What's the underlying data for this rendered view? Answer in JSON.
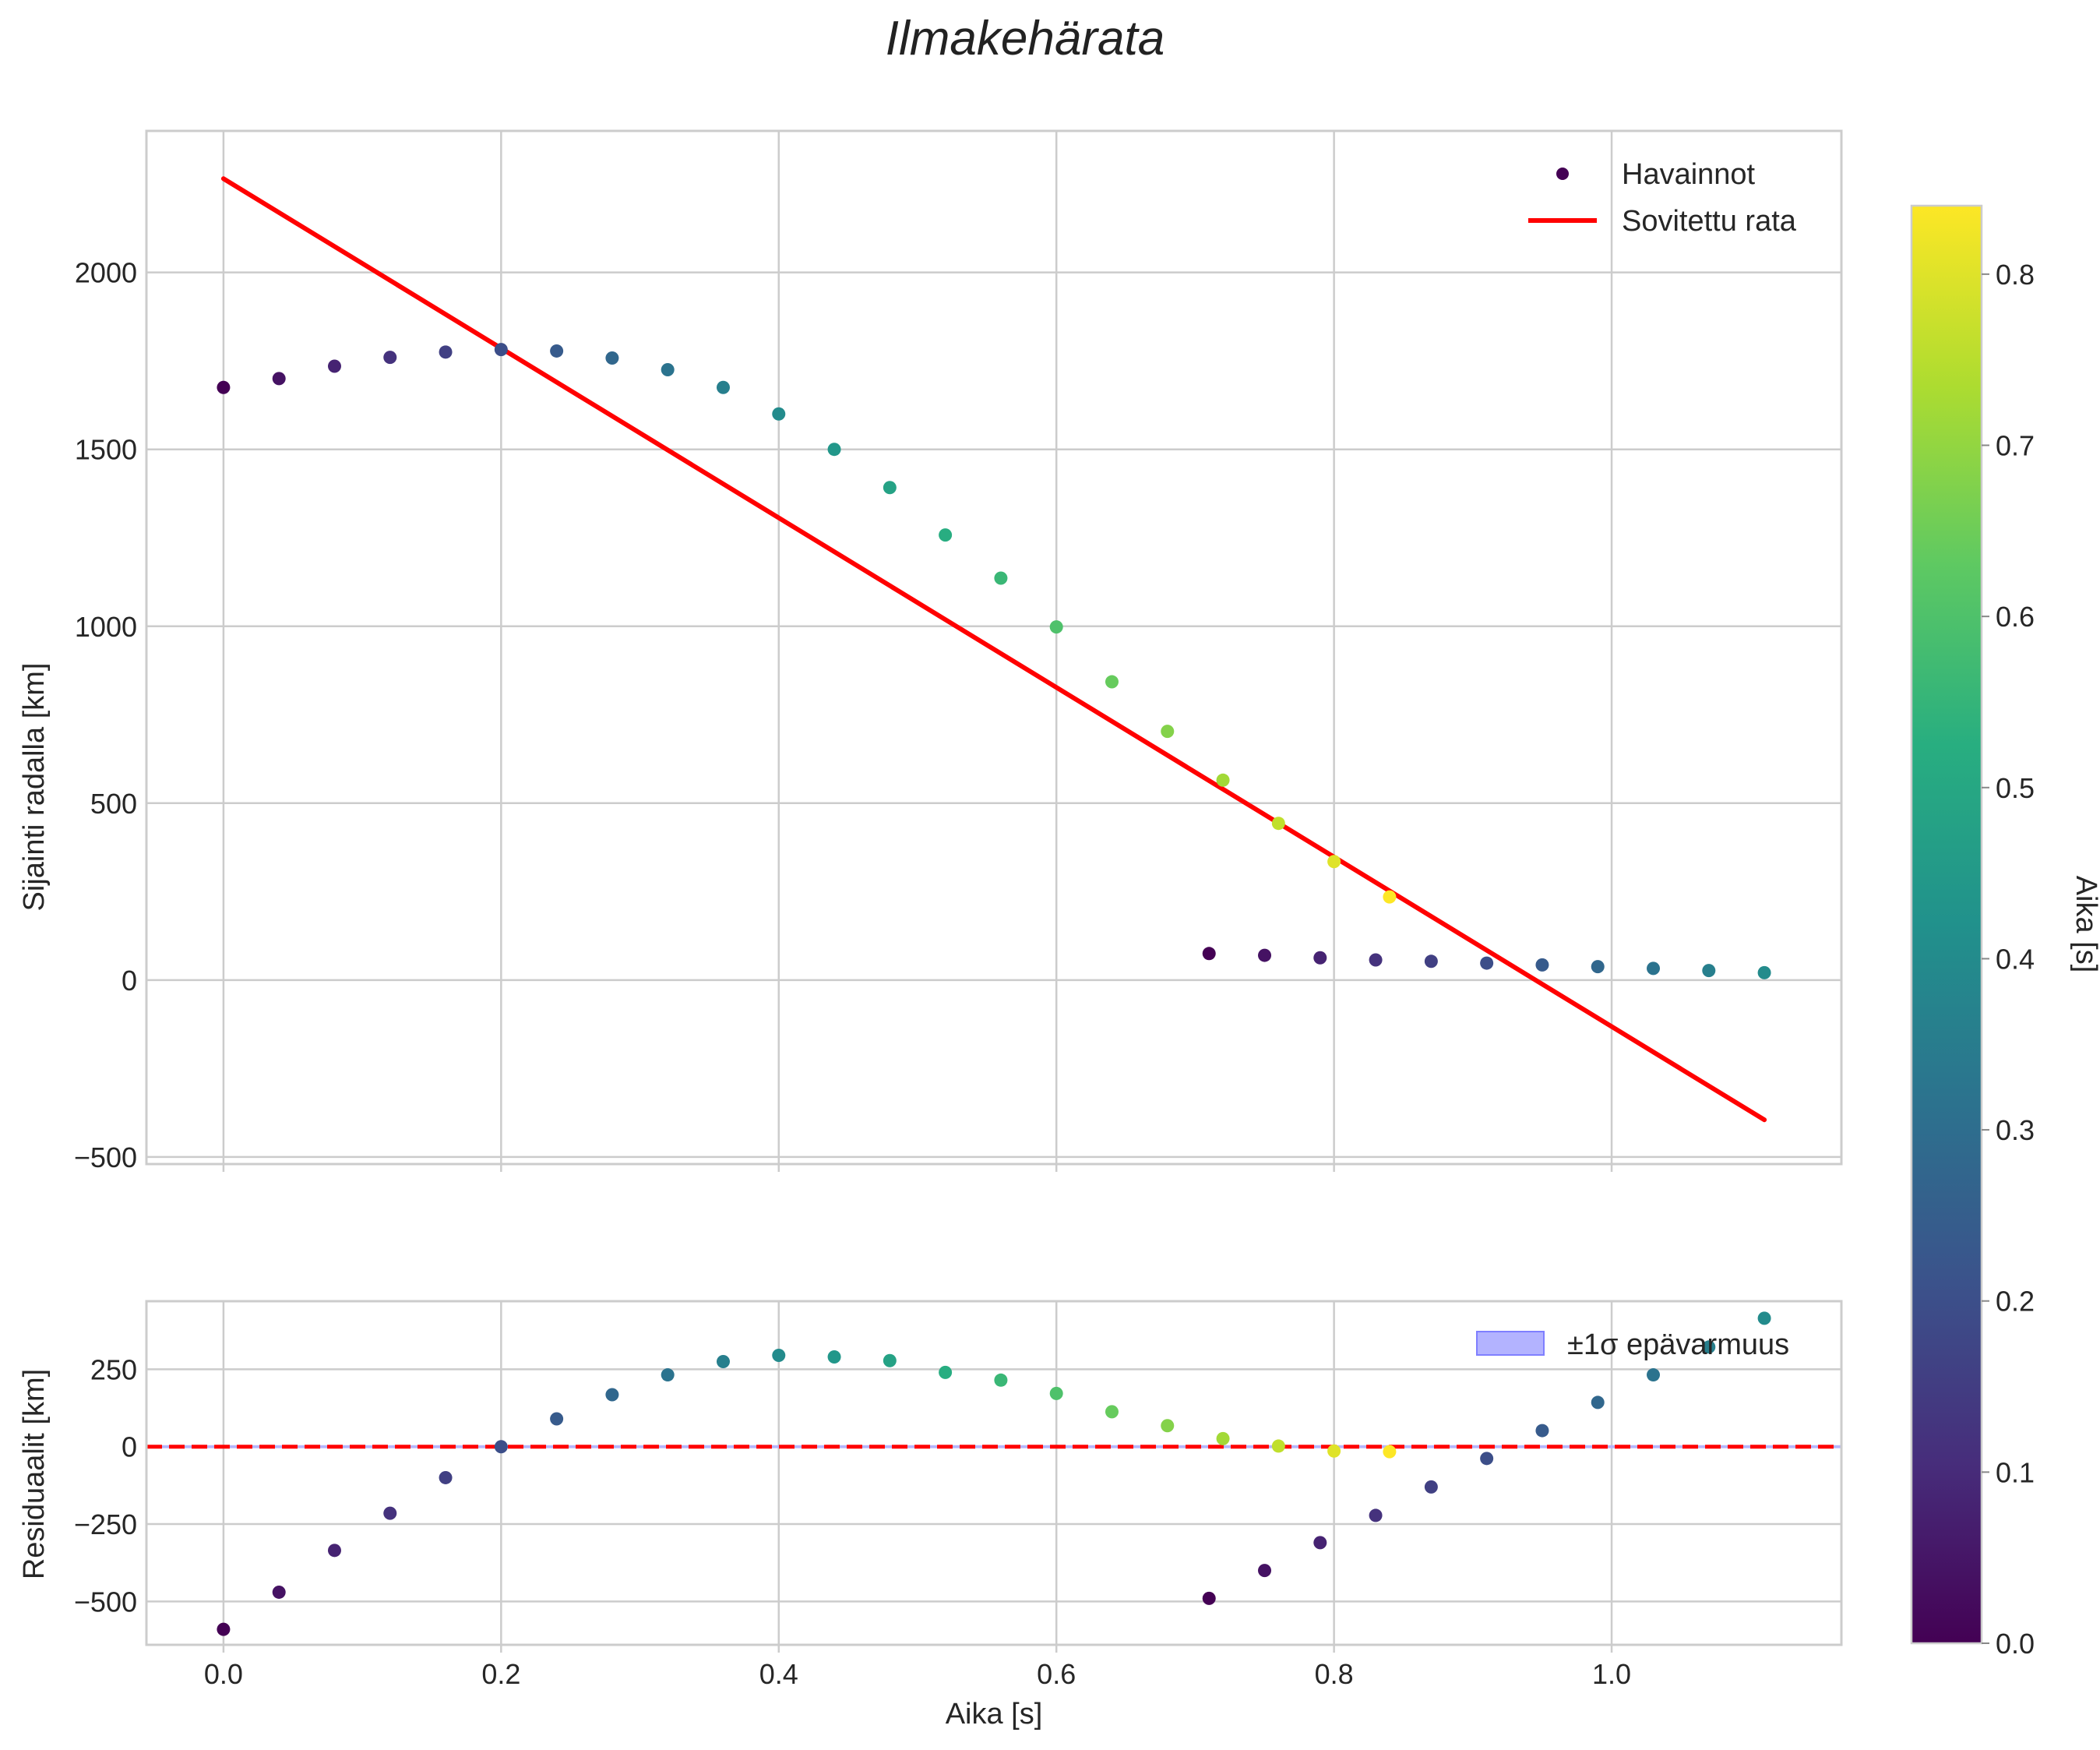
{
  "figure": {
    "title": "Ilmakehärata",
    "colormap": "viridis",
    "accent_color": "#ff0000"
  },
  "chart_data": [
    {
      "type": "scatter",
      "panel": "main",
      "title": "Ilmakehärata",
      "xlabel": "",
      "ylabel": "Sijainti radalla [km]",
      "xlim": [
        -0.0555,
        1.1655
      ],
      "ylim": [
        -520,
        2400
      ],
      "xticks": [
        0.0,
        0.2,
        0.4,
        0.6,
        0.8,
        1.0
      ],
      "yticks": [
        -500,
        0,
        500,
        1000,
        1500,
        2000
      ],
      "ytick_labels": [
        "−500",
        "0",
        "500",
        "1000",
        "1500",
        "2000"
      ],
      "grid": true,
      "legend_position": "top-right",
      "series": [
        {
          "name": "Havainnot",
          "kind": "scatter",
          "color_by": "time",
          "x": [
            0.0,
            0.04,
            0.08,
            0.12,
            0.16,
            0.2,
            0.24,
            0.28,
            0.32,
            0.36,
            0.4,
            0.44,
            0.48,
            0.52,
            0.56,
            0.6,
            0.64,
            0.68,
            0.72,
            0.76,
            0.8,
            0.84,
            0.71,
            0.75,
            0.79,
            0.83,
            0.87,
            0.91,
            0.95,
            0.99,
            1.03,
            1.07,
            1.11
          ],
          "y": [
            1675,
            1700,
            1735,
            1760,
            1775,
            1782,
            1778,
            1758,
            1725,
            1675,
            1600,
            1500,
            1392,
            1258,
            1136,
            998,
            843,
            703,
            565,
            443,
            335,
            235,
            75,
            70,
            63,
            57,
            53,
            48,
            43,
            38,
            33,
            27,
            21
          ],
          "c": [
            0.0,
            0.04,
            0.08,
            0.12,
            0.16,
            0.2,
            0.24,
            0.28,
            0.32,
            0.36,
            0.4,
            0.44,
            0.48,
            0.52,
            0.56,
            0.6,
            0.64,
            0.68,
            0.72,
            0.76,
            0.8,
            0.84,
            0.0,
            0.04,
            0.08,
            0.12,
            0.16,
            0.2,
            0.24,
            0.28,
            0.32,
            0.36,
            0.4
          ]
        },
        {
          "name": "Sovitettu rata",
          "kind": "line",
          "color": "#ff0000",
          "x": [
            0.0,
            1.11
          ],
          "y": [
            2265,
            -395
          ]
        }
      ]
    },
    {
      "type": "scatter",
      "panel": "residuals",
      "xlabel": "Aika [s]",
      "ylabel": "Residuaalit [km]",
      "xlim": [
        -0.0555,
        1.1655
      ],
      "ylim": [
        -640,
        470
      ],
      "xticks": [
        0.0,
        0.2,
        0.4,
        0.6,
        0.8,
        1.0
      ],
      "xtick_labels": [
        "0.0",
        "0.2",
        "0.4",
        "0.6",
        "0.8",
        "1.0"
      ],
      "yticks": [
        -500,
        -250,
        0,
        250
      ],
      "ytick_labels": [
        "−500",
        "−250",
        "0",
        "250"
      ],
      "grid": true,
      "legend_position": "top-right",
      "zero_line": {
        "y": 0,
        "color": "#ff0000",
        "style": "dashed"
      },
      "uncertainty_band": {
        "name": "±1σ epävarmuus",
        "lower": -5,
        "upper": 5,
        "color": "#b3b3ff"
      },
      "series": [
        {
          "name": "Residuaalit",
          "kind": "scatter",
          "x": [
            0.0,
            0.04,
            0.08,
            0.12,
            0.16,
            0.2,
            0.24,
            0.28,
            0.32,
            0.36,
            0.4,
            0.44,
            0.48,
            0.52,
            0.56,
            0.6,
            0.64,
            0.68,
            0.72,
            0.76,
            0.8,
            0.84,
            0.71,
            0.75,
            0.79,
            0.83,
            0.87,
            0.91,
            0.95,
            0.99,
            1.03,
            1.07,
            1.11
          ],
          "y": [
            -590,
            -470,
            -335,
            -215,
            -100,
            0,
            90,
            168,
            232,
            275,
            295,
            290,
            278,
            240,
            215,
            172,
            113,
            68,
            26,
            2,
            -14,
            -16,
            -490,
            -400,
            -310,
            -222,
            -130,
            -38,
            52,
            143,
            232,
            322,
            415
          ],
          "c": [
            0.0,
            0.04,
            0.08,
            0.12,
            0.16,
            0.2,
            0.24,
            0.28,
            0.32,
            0.36,
            0.4,
            0.44,
            0.48,
            0.52,
            0.56,
            0.6,
            0.64,
            0.68,
            0.72,
            0.76,
            0.8,
            0.84,
            0.0,
            0.04,
            0.08,
            0.12,
            0.16,
            0.2,
            0.24,
            0.28,
            0.32,
            0.36,
            0.4
          ]
        }
      ]
    },
    {
      "type": "colorbar",
      "label": "Aika [s]",
      "range": [
        0.0,
        0.84
      ],
      "ticks": [
        0.0,
        0.1,
        0.2,
        0.3,
        0.4,
        0.5,
        0.6,
        0.7,
        0.8
      ],
      "tick_labels": [
        "0.0",
        "0.1",
        "0.2",
        "0.3",
        "0.4",
        "0.5",
        "0.6",
        "0.7",
        "0.8"
      ]
    }
  ]
}
